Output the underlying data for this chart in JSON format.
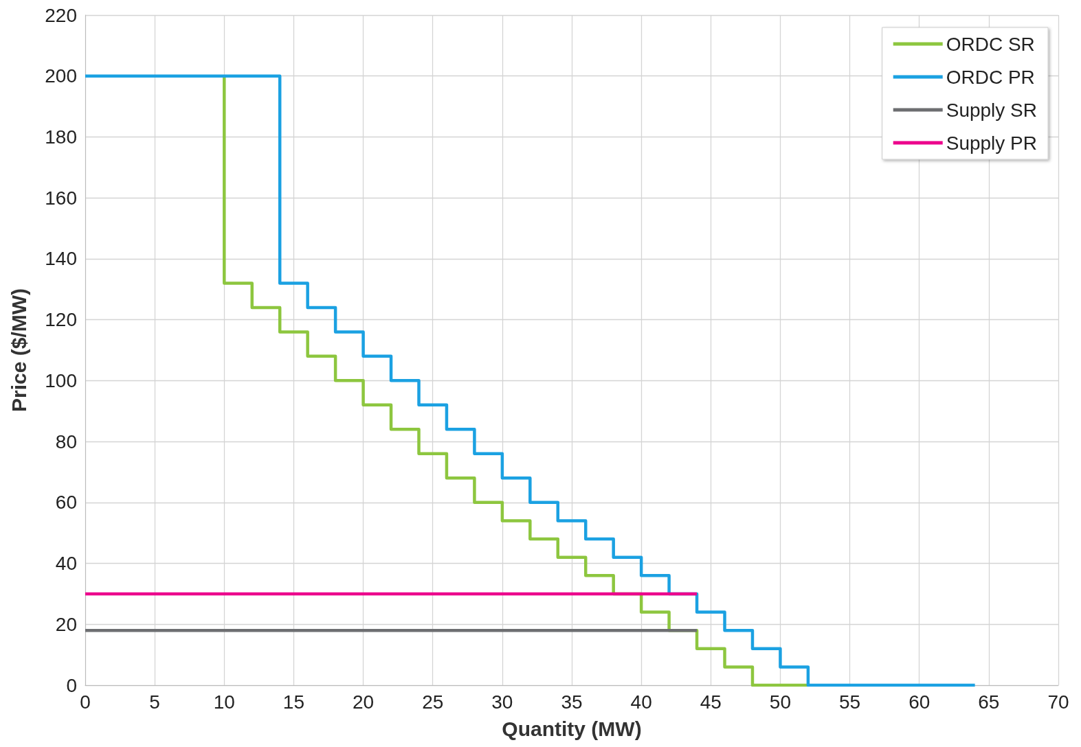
{
  "chart_data": {
    "type": "step",
    "xlabel": "Quantity (MW)",
    "ylabel": "Price ($/MW)",
    "xlim": [
      0,
      70
    ],
    "xticks": [
      0,
      5,
      10,
      15,
      20,
      25,
      30,
      35,
      40,
      45,
      50,
      55,
      60,
      65,
      70
    ],
    "ylim": [
      0,
      220
    ],
    "yticks": [
      0,
      20,
      40,
      60,
      80,
      100,
      120,
      140,
      160,
      180,
      200,
      220
    ],
    "grid": true,
    "legend": "top right",
    "marker": "none",
    "line_style": "solid",
    "series": [
      {
        "name": "ORDC SR",
        "color": "#8dc63f",
        "x": [
          10,
          10,
          12,
          14,
          16,
          18,
          20,
          22,
          24,
          26,
          28,
          30,
          32,
          34,
          36,
          38,
          40,
          42,
          44,
          46,
          48,
          52
        ],
        "values": [
          200,
          132,
          124,
          116,
          108,
          100,
          92,
          84,
          76,
          68,
          60,
          54,
          48,
          42,
          36,
          30,
          24,
          18,
          12,
          6,
          0,
          0
        ]
      },
      {
        "name": "ORDC PR",
        "color": "#1ba1e2",
        "x": [
          0,
          14,
          16,
          18,
          20,
          22,
          24,
          26,
          28,
          30,
          32,
          34,
          36,
          38,
          40,
          42,
          44,
          46,
          48,
          50,
          52,
          64
        ],
        "values": [
          200,
          132,
          124,
          116,
          108,
          100,
          92,
          84,
          76,
          68,
          60,
          54,
          48,
          42,
          36,
          30,
          24,
          18,
          12,
          6,
          0,
          0
        ]
      },
      {
        "name": "Supply SR",
        "color": "#6d6e71",
        "type": "line",
        "x": [
          0,
          44
        ],
        "values": [
          18,
          18
        ]
      },
      {
        "name": "Supply PR",
        "color": "#ec008c",
        "type": "line",
        "x": [
          0,
          44
        ],
        "values": [
          30,
          30
        ]
      }
    ]
  }
}
